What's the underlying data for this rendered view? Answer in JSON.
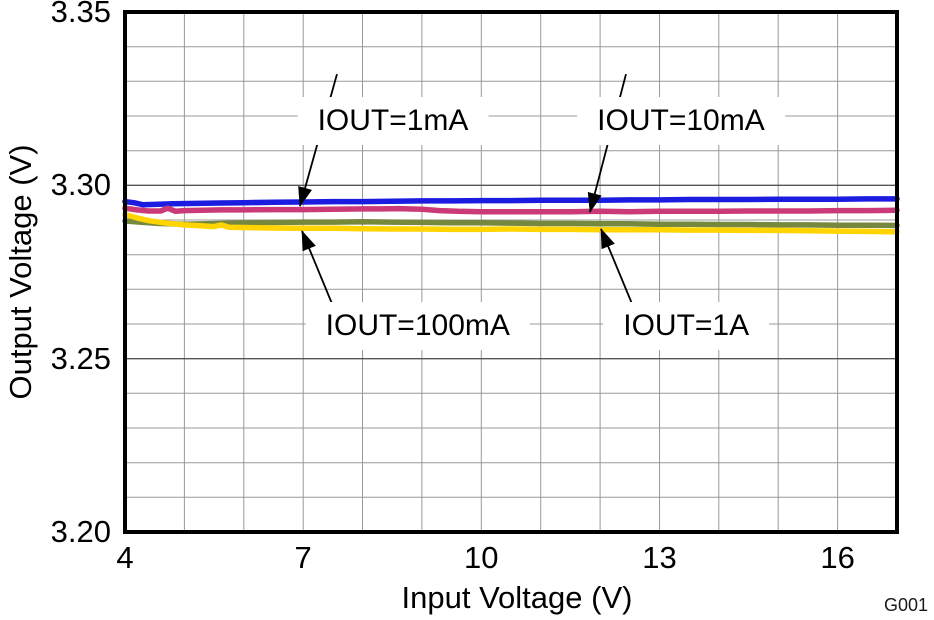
{
  "figure_id": "G001",
  "colors": {
    "background": "#ffffff",
    "frame": "#000000",
    "grid_minor": "#999999",
    "grid_major_h": "#555555",
    "text": "#000000",
    "callout_arrow": "#000000"
  },
  "axes": {
    "x": {
      "major_tick_labels": [
        "4",
        "7",
        "10",
        "13",
        "16"
      ],
      "major_tick_values": [
        4,
        7,
        10,
        13,
        16
      ],
      "minor_step": 1
    },
    "y": {
      "major_tick_labels": [
        "3.35",
        "3.30",
        "3.25",
        "3.20"
      ],
      "major_tick_values": [
        3.35,
        3.3,
        3.25,
        3.2
      ],
      "minor_step": 0.01
    }
  },
  "chart_data": {
    "type": "line",
    "title": "",
    "xlabel": "Input Voltage (V)",
    "ylabel": "Output Voltage (V)",
    "xlim": [
      4,
      17
    ],
    "ylim": [
      3.2,
      3.35
    ],
    "grid": true,
    "legend_position": "inline-callouts",
    "series": [
      {
        "name": "IOUT=1mA",
        "color": "#1c1ce0",
        "x": [
          4,
          4.15,
          4.3,
          4.5,
          4.8,
          5.2,
          5.6,
          6,
          6.5,
          7,
          7.5,
          8,
          8.5,
          9,
          9.5,
          10,
          10.5,
          11,
          11.5,
          12,
          12.5,
          13,
          13.5,
          14,
          14.5,
          15,
          15.5,
          16,
          16.5,
          17
        ],
        "y": [
          3.2953,
          3.295,
          3.2944,
          3.2945,
          3.2947,
          3.2948,
          3.2949,
          3.295,
          3.2951,
          3.2952,
          3.2953,
          3.2953,
          3.2954,
          3.2955,
          3.2955,
          3.2956,
          3.2956,
          3.2957,
          3.2957,
          3.2957,
          3.2958,
          3.2958,
          3.2959,
          3.2959,
          3.2959,
          3.296,
          3.296,
          3.296,
          3.2961,
          3.2961
        ]
      },
      {
        "name": "IOUT=10mA",
        "color": "#cb3a78",
        "x": [
          4,
          4.2,
          4.4,
          4.6,
          4.72,
          4.85,
          5,
          5.3,
          5.6,
          6,
          6.5,
          7,
          7.5,
          8,
          8.3,
          8.6,
          9,
          9.3,
          9.6,
          10,
          10.5,
          11,
          11.5,
          12,
          12.5,
          13,
          13.5,
          14,
          14.5,
          15,
          15.5,
          16,
          16.5,
          17
        ],
        "y": [
          3.2934,
          3.2929,
          3.2926,
          3.2926,
          3.2934,
          3.2925,
          3.2927,
          3.2928,
          3.2929,
          3.2929,
          3.293,
          3.293,
          3.2931,
          3.2932,
          3.2932,
          3.2933,
          3.2931,
          3.2927,
          3.2925,
          3.2924,
          3.2924,
          3.2924,
          3.2924,
          3.2925,
          3.2924,
          3.2925,
          3.2925,
          3.2925,
          3.2926,
          3.2926,
          3.2926,
          3.2927,
          3.2927,
          3.2928
        ]
      },
      {
        "name": "IOUT=100mA",
        "color": "#ffd400",
        "x": [
          4,
          4.2,
          4.4,
          4.7,
          5,
          5.3,
          5.5,
          5.62,
          5.75,
          6.1,
          6.5,
          7,
          7.5,
          8,
          8.5,
          9,
          9.5,
          10,
          10.5,
          11,
          11.5,
          12,
          12.5,
          13,
          13.5,
          14,
          14.5,
          15,
          15.5,
          16,
          16.5,
          17
        ],
        "y": [
          3.2916,
          3.2906,
          3.2898,
          3.2891,
          3.2886,
          3.2883,
          3.2881,
          3.2886,
          3.2879,
          3.2878,
          3.2877,
          3.2876,
          3.2876,
          3.2875,
          3.2874,
          3.2874,
          3.2873,
          3.2873,
          3.2874,
          3.2873,
          3.2873,
          3.2872,
          3.2872,
          3.2872,
          3.2871,
          3.2871,
          3.287,
          3.287,
          3.2869,
          3.2868,
          3.2867,
          3.2866
        ]
      },
      {
        "name": "IOUT=1A",
        "color": "#76883e",
        "x": [
          4,
          4.3,
          4.6,
          5,
          5.4,
          5.8,
          6.2,
          6.6,
          7,
          7.5,
          8,
          8.5,
          9,
          9.5,
          10,
          10.5,
          11,
          11.5,
          12,
          12.5,
          13,
          13.5,
          14,
          14.5,
          15,
          15.5,
          16,
          16.5,
          17
        ],
        "y": [
          3.2897,
          3.2893,
          3.289,
          3.2888,
          3.2889,
          3.2891,
          3.2892,
          3.2893,
          3.2894,
          3.2894,
          3.2895,
          3.2894,
          3.2893,
          3.2892,
          3.2892,
          3.2891,
          3.289,
          3.289,
          3.2889,
          3.2889,
          3.2888,
          3.2888,
          3.2887,
          3.2887,
          3.2886,
          3.2886,
          3.2885,
          3.2885,
          3.2884
        ]
      }
    ],
    "annotations": [
      {
        "text": "IOUT=1mA",
        "label_at": [
          8.513,
          3.3186
        ],
        "arrow_from": [
          7.57,
          3.3321
        ],
        "arrow_to": [
          6.947,
          3.294
        ]
      },
      {
        "text": "IOUT=10mA",
        "label_at": [
          13.362,
          3.3186
        ],
        "arrow_from": [
          12.436,
          3.3321
        ],
        "arrow_to": [
          11.83,
          3.2923
        ]
      },
      {
        "text": "IOUT=100mA",
        "label_at": [
          8.93,
          3.2594
        ],
        "arrow_from": [
          7.704,
          3.2568
        ],
        "arrow_to": [
          6.98,
          3.2868
        ]
      },
      {
        "text": "IOUT=1A",
        "label_at": [
          13.45,
          3.2594
        ],
        "arrow_from": [
          12.756,
          3.2568
        ],
        "arrow_to": [
          12.015,
          3.2874
        ]
      }
    ]
  }
}
